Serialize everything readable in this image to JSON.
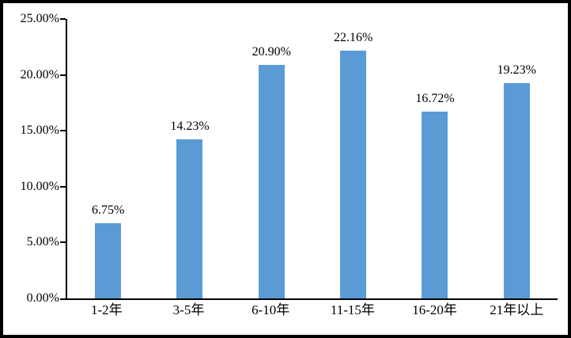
{
  "figure": {
    "background": "#ffffff",
    "border_color": "#000000",
    "axis_color": "#000000",
    "text_color": "#000000"
  },
  "chart_data": {
    "type": "bar",
    "title": "",
    "xlabel": "",
    "ylabel": "",
    "categories": [
      "1-2年",
      "3-5年",
      "6-10年",
      "11-15年",
      "16-20年",
      "21年以上"
    ],
    "values": [
      6.75,
      14.23,
      20.9,
      22.16,
      16.72,
      19.23
    ],
    "data_labels": [
      "6.75%",
      "14.23%",
      "20.90%",
      "22.16%",
      "16.72%",
      "19.23%"
    ],
    "y_ticks_top_to_bottom": [
      "25.00%",
      "20.00%",
      "15.00%",
      "10.00%",
      "5.00%",
      "0.00%"
    ],
    "ylim": [
      0,
      25
    ],
    "bar_color": "#5B9BD5",
    "grid": false,
    "legend": false,
    "plot_border": "left-and-bottom-only"
  }
}
